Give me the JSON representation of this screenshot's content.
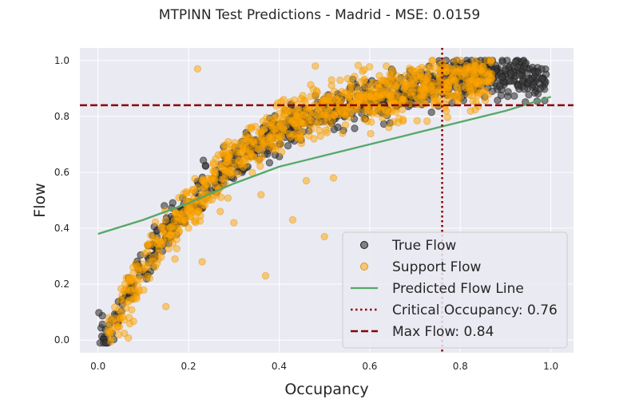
{
  "chart_data": {
    "type": "scatter",
    "title": "MTPINN Test Predictions - Madrid - MSE: 0.0159",
    "xlabel": "Occupancy",
    "ylabel": "Flow",
    "xlim": [
      -0.04,
      1.05
    ],
    "ylim": [
      -0.045,
      1.045
    ],
    "xticks": [
      "0.0",
      "0.2",
      "0.4",
      "0.6",
      "0.8",
      "1.0"
    ],
    "yticks": [
      "0.0",
      "0.2",
      "0.4",
      "0.6",
      "0.8",
      "1.0"
    ],
    "grid": true,
    "legend_position": "lower-right",
    "colors": {
      "background": "#eaeaf2",
      "grid": "#ffffff",
      "true_flow": "#3a3a3a",
      "support_flow": "#ffa500",
      "predicted": "#55a868",
      "critical": "#8b0000",
      "max_flow": "#8b0000"
    },
    "series": [
      {
        "name": "True Flow",
        "kind": "scatter",
        "trend": [
          [
            0.0,
            0.0
          ],
          [
            0.03,
            0.04
          ],
          [
            0.06,
            0.14
          ],
          [
            0.09,
            0.24
          ],
          [
            0.12,
            0.32
          ],
          [
            0.16,
            0.4
          ],
          [
            0.2,
            0.48
          ],
          [
            0.25,
            0.56
          ],
          [
            0.3,
            0.63
          ],
          [
            0.35,
            0.69
          ],
          [
            0.4,
            0.74
          ],
          [
            0.45,
            0.78
          ],
          [
            0.5,
            0.81
          ],
          [
            0.55,
            0.84
          ],
          [
            0.6,
            0.86
          ],
          [
            0.65,
            0.88
          ],
          [
            0.7,
            0.9
          ],
          [
            0.75,
            0.92
          ],
          [
            0.8,
            0.94
          ],
          [
            0.85,
            0.95
          ],
          [
            0.9,
            0.95
          ],
          [
            0.95,
            0.94
          ],
          [
            0.98,
            0.93
          ]
        ],
        "x_range": [
          0.0,
          0.99
        ],
        "spread": 0.035,
        "count": 900
      },
      {
        "name": "Support Flow",
        "kind": "scatter",
        "trend": [
          [
            0.02,
            0.03
          ],
          [
            0.05,
            0.1
          ],
          [
            0.08,
            0.2
          ],
          [
            0.11,
            0.28
          ],
          [
            0.15,
            0.37
          ],
          [
            0.2,
            0.47
          ],
          [
            0.25,
            0.56
          ],
          [
            0.3,
            0.64
          ],
          [
            0.35,
            0.7
          ],
          [
            0.4,
            0.75
          ],
          [
            0.45,
            0.8
          ],
          [
            0.5,
            0.83
          ],
          [
            0.55,
            0.85
          ],
          [
            0.6,
            0.87
          ],
          [
            0.65,
            0.88
          ],
          [
            0.7,
            0.89
          ],
          [
            0.75,
            0.91
          ],
          [
            0.8,
            0.92
          ],
          [
            0.87,
            0.93
          ]
        ],
        "x_range": [
          0.02,
          0.87
        ],
        "spread": 0.045,
        "count": 900,
        "outliers": [
          [
            0.22,
            0.97
          ],
          [
            0.15,
            0.12
          ],
          [
            0.37,
            0.23
          ],
          [
            0.43,
            0.43
          ],
          [
            0.5,
            0.37
          ],
          [
            0.36,
            0.52
          ],
          [
            0.27,
            0.46
          ],
          [
            0.3,
            0.42
          ],
          [
            0.46,
            0.57
          ],
          [
            0.52,
            0.58
          ],
          [
            0.41,
            0.86
          ],
          [
            0.48,
            0.98
          ],
          [
            0.17,
            0.29
          ],
          [
            0.23,
            0.28
          ]
        ]
      },
      {
        "name": "Predicted Flow Line",
        "kind": "line",
        "x": [
          0.0,
          0.1,
          0.2,
          0.3,
          0.4,
          0.5,
          0.6,
          0.7,
          0.8,
          0.9,
          1.0
        ],
        "y": [
          0.38,
          0.43,
          0.49,
          0.56,
          0.62,
          0.66,
          0.7,
          0.74,
          0.78,
          0.82,
          0.87
        ]
      },
      {
        "name": "Critical Occupancy: 0.76",
        "kind": "vline",
        "x": 0.76
      },
      {
        "name": "Max Flow: 0.84",
        "kind": "hline",
        "y": 0.84
      }
    ]
  }
}
